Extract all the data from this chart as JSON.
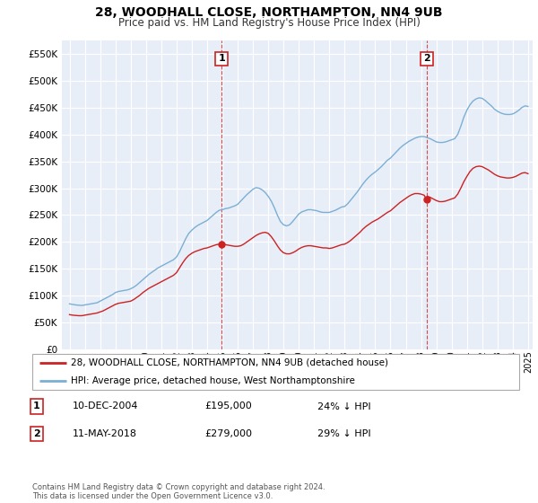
{
  "title": "28, WOODHALL CLOSE, NORTHAMPTON, NN4 9UB",
  "subtitle": "Price paid vs. HM Land Registry's House Price Index (HPI)",
  "ytick_vals": [
    0,
    50000,
    100000,
    150000,
    200000,
    250000,
    300000,
    350000,
    400000,
    450000,
    500000,
    550000
  ],
  "ylim": [
    0,
    575000
  ],
  "xlim_start": 1994.5,
  "xlim_end": 2025.3,
  "background_color": "#ffffff",
  "plot_bg_color": "#e8eef8",
  "grid_color": "#ffffff",
  "hpi_color": "#7bafd4",
  "price_color": "#cc2222",
  "marker1_x": 2004.95,
  "marker1_y": 195000,
  "marker2_x": 2018.37,
  "marker2_y": 279000,
  "legend_label_red": "28, WOODHALL CLOSE, NORTHAMPTON, NN4 9UB (detached house)",
  "legend_label_blue": "HPI: Average price, detached house, West Northamptonshire",
  "annotation1_num": "1",
  "annotation1_date": "10-DEC-2004",
  "annotation1_price": "£195,000",
  "annotation1_hpi": "24% ↓ HPI",
  "annotation2_num": "2",
  "annotation2_date": "11-MAY-2018",
  "annotation2_price": "£279,000",
  "annotation2_hpi": "29% ↓ HPI",
  "footer": "Contains HM Land Registry data © Crown copyright and database right 2024.\nThis data is licensed under the Open Government Licence v3.0.",
  "hpi_data": [
    [
      1995.0,
      85000
    ],
    [
      1995.2,
      84000
    ],
    [
      1995.4,
      83000
    ],
    [
      1995.6,
      82500
    ],
    [
      1995.8,
      82000
    ],
    [
      1996.0,
      83000
    ],
    [
      1996.2,
      84000
    ],
    [
      1996.4,
      85000
    ],
    [
      1996.6,
      86000
    ],
    [
      1996.8,
      87000
    ],
    [
      1997.0,
      90000
    ],
    [
      1997.2,
      93000
    ],
    [
      1997.4,
      96000
    ],
    [
      1997.6,
      99000
    ],
    [
      1997.8,
      102000
    ],
    [
      1998.0,
      106000
    ],
    [
      1998.2,
      108000
    ],
    [
      1998.4,
      109000
    ],
    [
      1998.6,
      110000
    ],
    [
      1998.8,
      111000
    ],
    [
      1999.0,
      113000
    ],
    [
      1999.2,
      116000
    ],
    [
      1999.4,
      120000
    ],
    [
      1999.6,
      125000
    ],
    [
      1999.8,
      130000
    ],
    [
      2000.0,
      135000
    ],
    [
      2000.2,
      140000
    ],
    [
      2000.4,
      144000
    ],
    [
      2000.6,
      148000
    ],
    [
      2000.8,
      152000
    ],
    [
      2001.0,
      155000
    ],
    [
      2001.2,
      158000
    ],
    [
      2001.4,
      161000
    ],
    [
      2001.6,
      164000
    ],
    [
      2001.8,
      167000
    ],
    [
      2002.0,
      172000
    ],
    [
      2002.2,
      182000
    ],
    [
      2002.4,
      194000
    ],
    [
      2002.6,
      206000
    ],
    [
      2002.8,
      216000
    ],
    [
      2003.0,
      222000
    ],
    [
      2003.2,
      227000
    ],
    [
      2003.4,
      231000
    ],
    [
      2003.6,
      234000
    ],
    [
      2003.8,
      237000
    ],
    [
      2004.0,
      240000
    ],
    [
      2004.2,
      245000
    ],
    [
      2004.4,
      250000
    ],
    [
      2004.6,
      255000
    ],
    [
      2004.8,
      259000
    ],
    [
      2005.0,
      260000
    ],
    [
      2005.2,
      262000
    ],
    [
      2005.4,
      263000
    ],
    [
      2005.6,
      265000
    ],
    [
      2005.8,
      267000
    ],
    [
      2006.0,
      270000
    ],
    [
      2006.2,
      276000
    ],
    [
      2006.4,
      282000
    ],
    [
      2006.6,
      288000
    ],
    [
      2006.8,
      293000
    ],
    [
      2007.0,
      298000
    ],
    [
      2007.2,
      301000
    ],
    [
      2007.4,
      300000
    ],
    [
      2007.6,
      297000
    ],
    [
      2007.8,
      292000
    ],
    [
      2008.0,
      285000
    ],
    [
      2008.2,
      276000
    ],
    [
      2008.4,
      264000
    ],
    [
      2008.6,
      250000
    ],
    [
      2008.8,
      238000
    ],
    [
      2009.0,
      232000
    ],
    [
      2009.2,
      230000
    ],
    [
      2009.4,
      232000
    ],
    [
      2009.6,
      238000
    ],
    [
      2009.8,
      245000
    ],
    [
      2010.0,
      252000
    ],
    [
      2010.2,
      256000
    ],
    [
      2010.4,
      258000
    ],
    [
      2010.6,
      260000
    ],
    [
      2010.8,
      260000
    ],
    [
      2011.0,
      259000
    ],
    [
      2011.2,
      258000
    ],
    [
      2011.4,
      256000
    ],
    [
      2011.6,
      255000
    ],
    [
      2011.8,
      255000
    ],
    [
      2012.0,
      255000
    ],
    [
      2012.2,
      257000
    ],
    [
      2012.4,
      259000
    ],
    [
      2012.6,
      262000
    ],
    [
      2012.8,
      265000
    ],
    [
      2013.0,
      266000
    ],
    [
      2013.2,
      271000
    ],
    [
      2013.4,
      278000
    ],
    [
      2013.6,
      285000
    ],
    [
      2013.8,
      292000
    ],
    [
      2014.0,
      300000
    ],
    [
      2014.2,
      308000
    ],
    [
      2014.4,
      315000
    ],
    [
      2014.6,
      321000
    ],
    [
      2014.8,
      326000
    ],
    [
      2015.0,
      330000
    ],
    [
      2015.2,
      335000
    ],
    [
      2015.4,
      340000
    ],
    [
      2015.6,
      346000
    ],
    [
      2015.8,
      352000
    ],
    [
      2016.0,
      356000
    ],
    [
      2016.2,
      362000
    ],
    [
      2016.4,
      368000
    ],
    [
      2016.6,
      374000
    ],
    [
      2016.8,
      379000
    ],
    [
      2017.0,
      383000
    ],
    [
      2017.2,
      387000
    ],
    [
      2017.4,
      390000
    ],
    [
      2017.6,
      393000
    ],
    [
      2017.8,
      395000
    ],
    [
      2018.0,
      396000
    ],
    [
      2018.2,
      396000
    ],
    [
      2018.4,
      394000
    ],
    [
      2018.6,
      392000
    ],
    [
      2018.8,
      389000
    ],
    [
      2019.0,
      386000
    ],
    [
      2019.2,
      385000
    ],
    [
      2019.4,
      385000
    ],
    [
      2019.6,
      386000
    ],
    [
      2019.8,
      388000
    ],
    [
      2020.0,
      390000
    ],
    [
      2020.2,
      392000
    ],
    [
      2020.4,
      400000
    ],
    [
      2020.6,
      415000
    ],
    [
      2020.8,
      432000
    ],
    [
      2021.0,
      445000
    ],
    [
      2021.2,
      455000
    ],
    [
      2021.4,
      462000
    ],
    [
      2021.6,
      466000
    ],
    [
      2021.8,
      468000
    ],
    [
      2022.0,
      467000
    ],
    [
      2022.2,
      463000
    ],
    [
      2022.4,
      458000
    ],
    [
      2022.6,
      453000
    ],
    [
      2022.8,
      447000
    ],
    [
      2023.0,
      443000
    ],
    [
      2023.2,
      440000
    ],
    [
      2023.4,
      438000
    ],
    [
      2023.6,
      437000
    ],
    [
      2023.8,
      437000
    ],
    [
      2024.0,
      438000
    ],
    [
      2024.2,
      441000
    ],
    [
      2024.4,
      445000
    ],
    [
      2024.6,
      450000
    ],
    [
      2024.8,
      453000
    ],
    [
      2025.0,
      452000
    ]
  ],
  "price_data": [
    [
      1995.0,
      65000
    ],
    [
      1995.2,
      64000
    ],
    [
      1995.4,
      63500
    ],
    [
      1995.6,
      63000
    ],
    [
      1995.8,
      63000
    ],
    [
      1996.0,
      64000
    ],
    [
      1996.2,
      65000
    ],
    [
      1996.4,
      66000
    ],
    [
      1996.6,
      67000
    ],
    [
      1996.8,
      68000
    ],
    [
      1997.0,
      70000
    ],
    [
      1997.2,
      72000
    ],
    [
      1997.4,
      75000
    ],
    [
      1997.6,
      78000
    ],
    [
      1997.8,
      81000
    ],
    [
      1998.0,
      84000
    ],
    [
      1998.2,
      86000
    ],
    [
      1998.4,
      87000
    ],
    [
      1998.6,
      88000
    ],
    [
      1998.8,
      89000
    ],
    [
      1999.0,
      90000
    ],
    [
      1999.2,
      93000
    ],
    [
      1999.4,
      97000
    ],
    [
      1999.6,
      101000
    ],
    [
      1999.8,
      106000
    ],
    [
      2000.0,
      110000
    ],
    [
      2000.2,
      114000
    ],
    [
      2000.4,
      117000
    ],
    [
      2000.6,
      120000
    ],
    [
      2000.8,
      123000
    ],
    [
      2001.0,
      126000
    ],
    [
      2001.2,
      129000
    ],
    [
      2001.4,
      132000
    ],
    [
      2001.6,
      135000
    ],
    [
      2001.8,
      138000
    ],
    [
      2002.0,
      143000
    ],
    [
      2002.2,
      152000
    ],
    [
      2002.4,
      161000
    ],
    [
      2002.6,
      169000
    ],
    [
      2002.8,
      175000
    ],
    [
      2003.0,
      179000
    ],
    [
      2003.2,
      182000
    ],
    [
      2003.4,
      184000
    ],
    [
      2003.6,
      186000
    ],
    [
      2003.8,
      188000
    ],
    [
      2004.0,
      189000
    ],
    [
      2004.2,
      191000
    ],
    [
      2004.4,
      193000
    ],
    [
      2004.6,
      195000
    ],
    [
      2004.8,
      196000
    ],
    [
      2004.95,
      195000
    ],
    [
      2005.0,
      196000
    ],
    [
      2005.2,
      195000
    ],
    [
      2005.4,
      194000
    ],
    [
      2005.6,
      193000
    ],
    [
      2005.8,
      192000
    ],
    [
      2006.0,
      192000
    ],
    [
      2006.2,
      193000
    ],
    [
      2006.4,
      196000
    ],
    [
      2006.6,
      200000
    ],
    [
      2006.8,
      204000
    ],
    [
      2007.0,
      208000
    ],
    [
      2007.2,
      212000
    ],
    [
      2007.4,
      215000
    ],
    [
      2007.6,
      217000
    ],
    [
      2007.8,
      218000
    ],
    [
      2008.0,
      216000
    ],
    [
      2008.2,
      210000
    ],
    [
      2008.4,
      202000
    ],
    [
      2008.6,
      193000
    ],
    [
      2008.8,
      185000
    ],
    [
      2009.0,
      180000
    ],
    [
      2009.2,
      178000
    ],
    [
      2009.4,
      178000
    ],
    [
      2009.6,
      180000
    ],
    [
      2009.8,
      183000
    ],
    [
      2010.0,
      187000
    ],
    [
      2010.2,
      190000
    ],
    [
      2010.4,
      192000
    ],
    [
      2010.6,
      193000
    ],
    [
      2010.8,
      193000
    ],
    [
      2011.0,
      192000
    ],
    [
      2011.2,
      191000
    ],
    [
      2011.4,
      190000
    ],
    [
      2011.6,
      189000
    ],
    [
      2011.8,
      189000
    ],
    [
      2012.0,
      188000
    ],
    [
      2012.2,
      189000
    ],
    [
      2012.4,
      191000
    ],
    [
      2012.6,
      193000
    ],
    [
      2012.8,
      195000
    ],
    [
      2013.0,
      196000
    ],
    [
      2013.2,
      199000
    ],
    [
      2013.4,
      203000
    ],
    [
      2013.6,
      208000
    ],
    [
      2013.8,
      213000
    ],
    [
      2014.0,
      218000
    ],
    [
      2014.2,
      224000
    ],
    [
      2014.4,
      229000
    ],
    [
      2014.6,
      233000
    ],
    [
      2014.8,
      237000
    ],
    [
      2015.0,
      240000
    ],
    [
      2015.2,
      243000
    ],
    [
      2015.4,
      247000
    ],
    [
      2015.6,
      251000
    ],
    [
      2015.8,
      255000
    ],
    [
      2016.0,
      258000
    ],
    [
      2016.2,
      263000
    ],
    [
      2016.4,
      268000
    ],
    [
      2016.6,
      273000
    ],
    [
      2016.8,
      277000
    ],
    [
      2017.0,
      281000
    ],
    [
      2017.2,
      285000
    ],
    [
      2017.4,
      288000
    ],
    [
      2017.6,
      290000
    ],
    [
      2017.8,
      290000
    ],
    [
      2018.0,
      289000
    ],
    [
      2018.2,
      287000
    ],
    [
      2018.37,
      279000
    ],
    [
      2018.4,
      285000
    ],
    [
      2018.6,
      283000
    ],
    [
      2018.8,
      280000
    ],
    [
      2019.0,
      277000
    ],
    [
      2019.2,
      275000
    ],
    [
      2019.4,
      275000
    ],
    [
      2019.6,
      276000
    ],
    [
      2019.8,
      278000
    ],
    [
      2020.0,
      280000
    ],
    [
      2020.2,
      282000
    ],
    [
      2020.4,
      289000
    ],
    [
      2020.6,
      300000
    ],
    [
      2020.8,
      312000
    ],
    [
      2021.0,
      322000
    ],
    [
      2021.2,
      331000
    ],
    [
      2021.4,
      337000
    ],
    [
      2021.6,
      340000
    ],
    [
      2021.8,
      341000
    ],
    [
      2022.0,
      340000
    ],
    [
      2022.2,
      337000
    ],
    [
      2022.4,
      334000
    ],
    [
      2022.6,
      330000
    ],
    [
      2022.8,
      326000
    ],
    [
      2023.0,
      323000
    ],
    [
      2023.2,
      321000
    ],
    [
      2023.4,
      320000
    ],
    [
      2023.6,
      319000
    ],
    [
      2023.8,
      319000
    ],
    [
      2024.0,
      320000
    ],
    [
      2024.2,
      322000
    ],
    [
      2024.4,
      325000
    ],
    [
      2024.6,
      328000
    ],
    [
      2024.8,
      329000
    ],
    [
      2025.0,
      327000
    ]
  ]
}
